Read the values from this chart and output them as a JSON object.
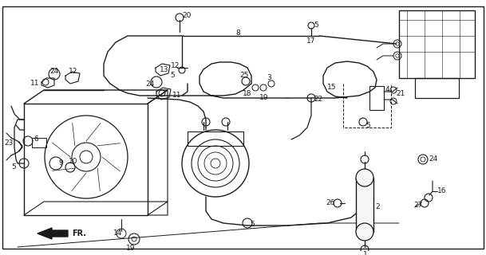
{
  "bg_color": "#ffffff",
  "line_color": "#1a1a1a",
  "fig_width": 6.09,
  "fig_height": 3.2,
  "dpi": 100
}
